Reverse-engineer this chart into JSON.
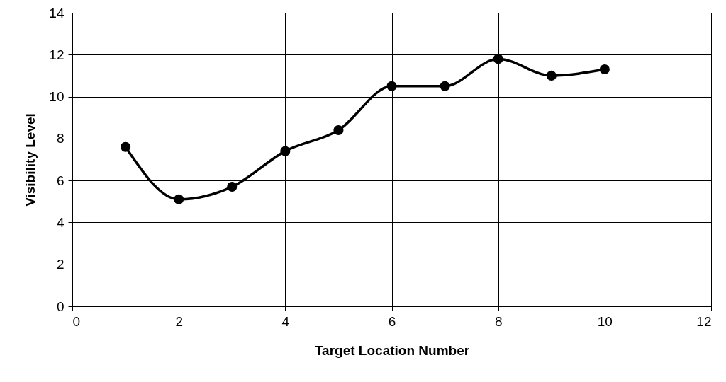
{
  "chart_data": {
    "type": "line",
    "xlabel": "Target Location Number",
    "ylabel": "Visibility Level",
    "x": [
      1,
      2,
      3,
      4,
      5,
      6,
      7,
      8,
      9,
      10
    ],
    "series": [
      {
        "color": "#000000",
        "values": [
          7.6,
          5.1,
          5.7,
          7.4,
          8.4,
          10.5,
          10.5,
          11.8,
          11.0,
          11.3
        ]
      }
    ],
    "xlim": [
      0,
      12
    ],
    "xticks": [
      0,
      2,
      4,
      6,
      8,
      10,
      12
    ],
    "ylim": [
      0,
      14
    ],
    "yticks": [
      0,
      2,
      4,
      6,
      8,
      10,
      12,
      14
    ],
    "grid": true,
    "marker": "circle",
    "line_style": "solid"
  }
}
